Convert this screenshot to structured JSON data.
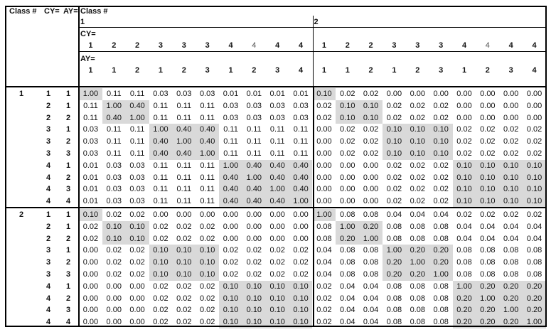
{
  "corner_headers": {
    "class_label": "Class #",
    "cy_label": "CY=",
    "ay_label": "AY="
  },
  "column_header": {
    "class_label": "Class #",
    "cy_label": "CY=",
    "ay_label": "AY=",
    "classes": [
      {
        "class": "1",
        "cy": [
          "1",
          "2",
          "2",
          "3",
          "3",
          "3",
          "4",
          "4",
          "4",
          "4"
        ],
        "ay": [
          "1",
          "1",
          "2",
          "1",
          "2",
          "3",
          "1",
          "2",
          "3",
          "4"
        ]
      },
      {
        "class": "2",
        "cy": [
          "1",
          "2",
          "2",
          "3",
          "3",
          "3",
          "4",
          "4",
          "4",
          "4"
        ],
        "ay": [
          "1",
          "1",
          "2",
          "1",
          "2",
          "3",
          "1",
          "2",
          "3",
          "4"
        ]
      }
    ]
  },
  "shade_color": "#d9d9d9",
  "groups": [
    {
      "class": "1",
      "rows": [
        {
          "cy": "1",
          "ay": "1",
          "values": [
            "1.00",
            "0.11",
            "0.11",
            "0.03",
            "0.03",
            "0.03",
            "0.01",
            "0.01",
            "0.01",
            "0.01",
            "0.10",
            "0.02",
            "0.02",
            "0.00",
            "0.00",
            "0.00",
            "0.00",
            "0.00",
            "0.00",
            "0.00"
          ]
        },
        {
          "cy": "2",
          "ay": "1",
          "values": [
            "0.11",
            "1.00",
            "0.40",
            "0.11",
            "0.11",
            "0.11",
            "0.03",
            "0.03",
            "0.03",
            "0.03",
            "0.02",
            "0.10",
            "0.10",
            "0.02",
            "0.02",
            "0.02",
            "0.00",
            "0.00",
            "0.00",
            "0.00"
          ]
        },
        {
          "cy": "2",
          "ay": "2",
          "values": [
            "0.11",
            "0.40",
            "1.00",
            "0.11",
            "0.11",
            "0.11",
            "0.03",
            "0.03",
            "0.03",
            "0.03",
            "0.02",
            "0.10",
            "0.10",
            "0.02",
            "0.02",
            "0.02",
            "0.00",
            "0.00",
            "0.00",
            "0.00"
          ]
        },
        {
          "cy": "3",
          "ay": "1",
          "values": [
            "0.03",
            "0.11",
            "0.11",
            "1.00",
            "0.40",
            "0.40",
            "0.11",
            "0.11",
            "0.11",
            "0.11",
            "0.00",
            "0.02",
            "0.02",
            "0.10",
            "0.10",
            "0.10",
            "0.02",
            "0.02",
            "0.02",
            "0.02"
          ]
        },
        {
          "cy": "3",
          "ay": "2",
          "values": [
            "0.03",
            "0.11",
            "0.11",
            "0.40",
            "1.00",
            "0.40",
            "0.11",
            "0.11",
            "0.11",
            "0.11",
            "0.00",
            "0.02",
            "0.02",
            "0.10",
            "0.10",
            "0.10",
            "0.02",
            "0.02",
            "0.02",
            "0.02"
          ]
        },
        {
          "cy": "3",
          "ay": "3",
          "values": [
            "0.03",
            "0.11",
            "0.11",
            "0.40",
            "0.40",
            "1.00",
            "0.11",
            "0.11",
            "0.11",
            "0.11",
            "0.00",
            "0.02",
            "0.02",
            "0.10",
            "0.10",
            "0.10",
            "0.02",
            "0.02",
            "0.02",
            "0.02"
          ]
        },
        {
          "cy": "4",
          "ay": "1",
          "values": [
            "0.01",
            "0.03",
            "0.03",
            "0.11",
            "0.11",
            "0.11",
            "1.00",
            "0.40",
            "0.40",
            "0.40",
            "0.00",
            "0.00",
            "0.00",
            "0.02",
            "0.02",
            "0.02",
            "0.10",
            "0.10",
            "0.10",
            "0.10"
          ]
        },
        {
          "cy": "4",
          "ay": "2",
          "values": [
            "0.01",
            "0.03",
            "0.03",
            "0.11",
            "0.11",
            "0.11",
            "0.40",
            "1.00",
            "0.40",
            "0.40",
            "0.00",
            "0.00",
            "0.00",
            "0.02",
            "0.02",
            "0.02",
            "0.10",
            "0.10",
            "0.10",
            "0.10"
          ]
        },
        {
          "cy": "4",
          "ay": "3",
          "values": [
            "0.01",
            "0.03",
            "0.03",
            "0.11",
            "0.11",
            "0.11",
            "0.40",
            "0.40",
            "1.00",
            "0.40",
            "0.00",
            "0.00",
            "0.00",
            "0.02",
            "0.02",
            "0.02",
            "0.10",
            "0.10",
            "0.10",
            "0.10"
          ]
        },
        {
          "cy": "4",
          "ay": "4",
          "values": [
            "0.01",
            "0.03",
            "0.03",
            "0.11",
            "0.11",
            "0.11",
            "0.40",
            "0.40",
            "0.40",
            "1.00",
            "0.00",
            "0.00",
            "0.00",
            "0.02",
            "0.02",
            "0.02",
            "0.10",
            "0.10",
            "0.10",
            "0.10"
          ]
        }
      ]
    },
    {
      "class": "2",
      "rows": [
        {
          "cy": "1",
          "ay": "1",
          "values": [
            "0.10",
            "0.02",
            "0.02",
            "0.00",
            "0.00",
            "0.00",
            "0.00",
            "0.00",
            "0.00",
            "0.00",
            "1.00",
            "0.08",
            "0.08",
            "0.04",
            "0.04",
            "0.04",
            "0.02",
            "0.02",
            "0.02",
            "0.02"
          ]
        },
        {
          "cy": "2",
          "ay": "1",
          "values": [
            "0.02",
            "0.10",
            "0.10",
            "0.02",
            "0.02",
            "0.02",
            "0.00",
            "0.00",
            "0.00",
            "0.00",
            "0.08",
            "1.00",
            "0.20",
            "0.08",
            "0.08",
            "0.08",
            "0.04",
            "0.04",
            "0.04",
            "0.04"
          ]
        },
        {
          "cy": "2",
          "ay": "2",
          "values": [
            "0.02",
            "0.10",
            "0.10",
            "0.02",
            "0.02",
            "0.02",
            "0.00",
            "0.00",
            "0.00",
            "0.00",
            "0.08",
            "0.20",
            "1.00",
            "0.08",
            "0.08",
            "0.08",
            "0.04",
            "0.04",
            "0.04",
            "0.04"
          ]
        },
        {
          "cy": "3",
          "ay": "1",
          "values": [
            "0.00",
            "0.02",
            "0.02",
            "0.10",
            "0.10",
            "0.10",
            "0.02",
            "0.02",
            "0.02",
            "0.02",
            "0.04",
            "0.08",
            "0.08",
            "1.00",
            "0.20",
            "0.20",
            "0.08",
            "0.08",
            "0.08",
            "0.08"
          ]
        },
        {
          "cy": "3",
          "ay": "2",
          "values": [
            "0.00",
            "0.02",
            "0.02",
            "0.10",
            "0.10",
            "0.10",
            "0.02",
            "0.02",
            "0.02",
            "0.02",
            "0.04",
            "0.08",
            "0.08",
            "0.20",
            "1.00",
            "0.20",
            "0.08",
            "0.08",
            "0.08",
            "0.08"
          ]
        },
        {
          "cy": "3",
          "ay": "3",
          "values": [
            "0.00",
            "0.02",
            "0.02",
            "0.10",
            "0.10",
            "0.10",
            "0.02",
            "0.02",
            "0.02",
            "0.02",
            "0.04",
            "0.08",
            "0.08",
            "0.20",
            "0.20",
            "1.00",
            "0.08",
            "0.08",
            "0.08",
            "0.08"
          ]
        },
        {
          "cy": "4",
          "ay": "1",
          "values": [
            "0.00",
            "0.00",
            "0.00",
            "0.02",
            "0.02",
            "0.02",
            "0.10",
            "0.10",
            "0.10",
            "0.10",
            "0.02",
            "0.04",
            "0.04",
            "0.08",
            "0.08",
            "0.08",
            "1.00",
            "0.20",
            "0.20",
            "0.20"
          ]
        },
        {
          "cy": "4",
          "ay": "2",
          "values": [
            "0.00",
            "0.00",
            "0.00",
            "0.02",
            "0.02",
            "0.02",
            "0.10",
            "0.10",
            "0.10",
            "0.10",
            "0.02",
            "0.04",
            "0.04",
            "0.08",
            "0.08",
            "0.08",
            "0.20",
            "1.00",
            "0.20",
            "0.20"
          ]
        },
        {
          "cy": "4",
          "ay": "3",
          "values": [
            "0.00",
            "0.00",
            "0.00",
            "0.02",
            "0.02",
            "0.02",
            "0.10",
            "0.10",
            "0.10",
            "0.10",
            "0.02",
            "0.04",
            "0.04",
            "0.08",
            "0.08",
            "0.08",
            "0.20",
            "0.20",
            "1.00",
            "0.20"
          ]
        },
        {
          "cy": "4",
          "ay": "4",
          "values": [
            "0.00",
            "0.00",
            "0.00",
            "0.02",
            "0.02",
            "0.02",
            "0.10",
            "0.10",
            "0.10",
            "0.10",
            "0.02",
            "0.04",
            "0.04",
            "0.08",
            "0.08",
            "0.08",
            "0.20",
            "0.20",
            "0.20",
            "1.00"
          ]
        }
      ]
    }
  ]
}
